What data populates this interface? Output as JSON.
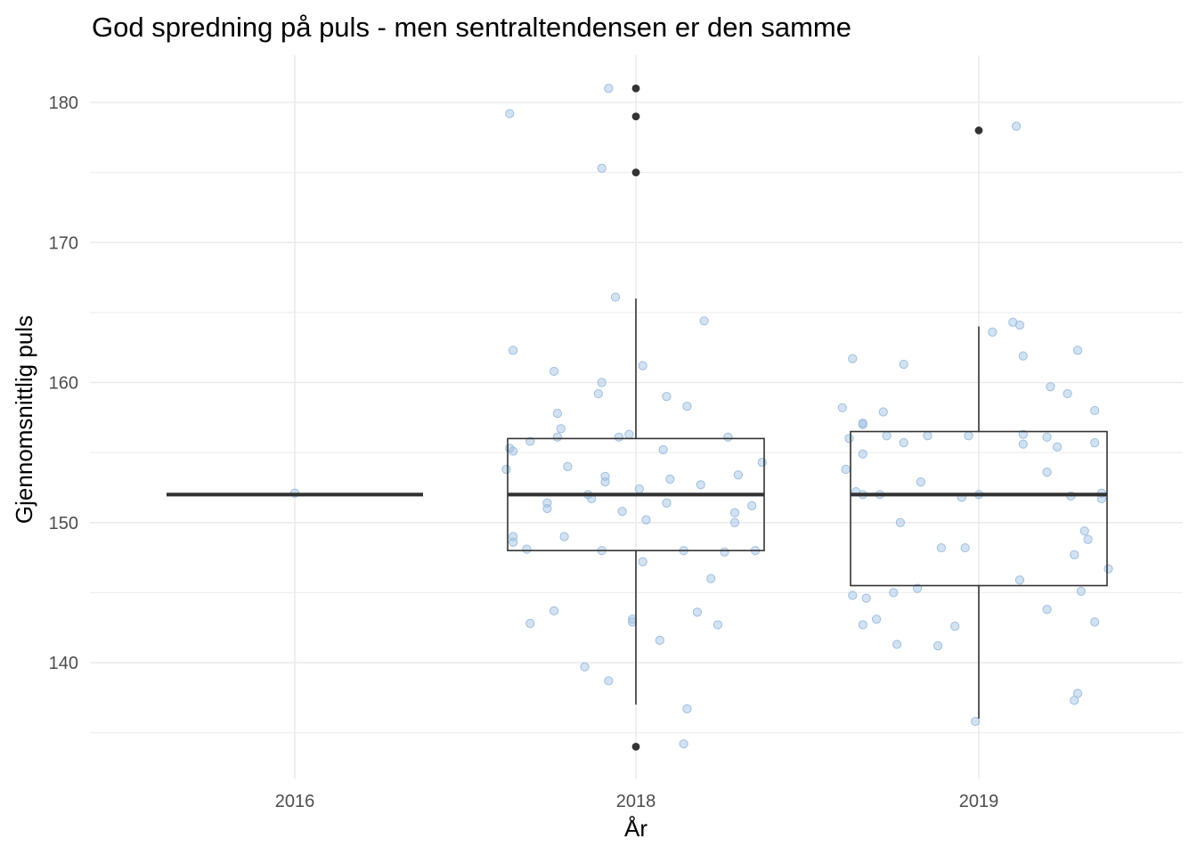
{
  "chart_data": {
    "type": "boxplot",
    "title": "God spredning på puls - men sentraltendensen er den samme",
    "xlabel": "År",
    "ylabel": "Gjennomsnittlig puls",
    "categories": [
      "2016",
      "2018",
      "2019"
    ],
    "y_ticks": [
      140,
      150,
      160,
      170,
      180
    ],
    "ylim": [
      133,
      184
    ],
    "grid": true,
    "colors": {
      "points": "#9ebfe0",
      "box": "#333333",
      "outlier": "#333333",
      "grid": "#ebebeb"
    },
    "boxes": [
      {
        "category": "2016",
        "lower_whisker": 152,
        "q1": 152,
        "median": 152,
        "q3": 152,
        "upper_whisker": 152,
        "outliers": []
      },
      {
        "category": "2018",
        "lower_whisker": 137,
        "q1": 148,
        "median": 152,
        "q3": 156,
        "upper_whisker": 166,
        "outliers": [
          134,
          175,
          179,
          181
        ]
      },
      {
        "category": "2019",
        "lower_whisker": 136,
        "q1": 145.5,
        "median": 152,
        "q3": 156.5,
        "upper_whisker": 164,
        "outliers": [
          178
        ]
      }
    ],
    "jitter_points": [
      {
        "category": "2016",
        "values": [
          [
            0.0,
            152.1
          ]
        ]
      },
      {
        "category": "2018",
        "values": [
          [
            -0.37,
            179.2
          ],
          [
            -0.1,
            175.3
          ],
          [
            -0.08,
            181.0
          ],
          [
            -0.06,
            166.1
          ],
          [
            0.2,
            164.4
          ],
          [
            -0.36,
            162.3
          ],
          [
            -0.24,
            160.8
          ],
          [
            -0.1,
            160.0
          ],
          [
            0.02,
            161.2
          ],
          [
            -0.11,
            159.2
          ],
          [
            0.09,
            159.0
          ],
          [
            0.15,
            158.3
          ],
          [
            -0.23,
            157.8
          ],
          [
            -0.22,
            156.7
          ],
          [
            -0.23,
            156.1
          ],
          [
            -0.05,
            156.1
          ],
          [
            -0.02,
            156.3
          ],
          [
            -0.31,
            155.8
          ],
          [
            -0.36,
            155.1
          ],
          [
            -0.37,
            155.3
          ],
          [
            0.08,
            155.2
          ],
          [
            0.27,
            156.1
          ],
          [
            0.37,
            154.3
          ],
          [
            -0.2,
            154.0
          ],
          [
            -0.09,
            153.3
          ],
          [
            -0.09,
            152.9
          ],
          [
            0.1,
            153.1
          ],
          [
            0.19,
            152.7
          ],
          [
            0.3,
            153.4
          ],
          [
            -0.38,
            153.8
          ],
          [
            0.01,
            152.4
          ],
          [
            -0.14,
            152.0
          ],
          [
            -0.13,
            151.7
          ],
          [
            0.09,
            151.4
          ],
          [
            -0.26,
            151.4
          ],
          [
            -0.26,
            151.0
          ],
          [
            0.34,
            151.2
          ],
          [
            -0.04,
            150.8
          ],
          [
            0.29,
            150.7
          ],
          [
            0.03,
            150.2
          ],
          [
            0.29,
            150.0
          ],
          [
            -0.36,
            149.0
          ],
          [
            -0.36,
            148.6
          ],
          [
            -0.21,
            149.0
          ],
          [
            -0.32,
            148.1
          ],
          [
            -0.1,
            148.0
          ],
          [
            0.14,
            148.0
          ],
          [
            0.26,
            147.9
          ],
          [
            0.35,
            148.0
          ],
          [
            0.02,
            147.2
          ],
          [
            0.22,
            146.0
          ],
          [
            -0.31,
            142.8
          ],
          [
            -0.24,
            143.7
          ],
          [
            -0.01,
            143.1
          ],
          [
            -0.01,
            142.9
          ],
          [
            0.18,
            143.6
          ],
          [
            0.24,
            142.7
          ],
          [
            0.07,
            141.6
          ],
          [
            -0.15,
            139.7
          ],
          [
            -0.08,
            138.7
          ],
          [
            0.15,
            136.7
          ],
          [
            0.14,
            134.2
          ]
        ]
      },
      {
        "category": "2019",
        "values": [
          [
            0.11,
            178.3
          ],
          [
            0.1,
            164.3
          ],
          [
            0.12,
            164.1
          ],
          [
            0.04,
            163.6
          ],
          [
            0.29,
            162.3
          ],
          [
            0.13,
            161.9
          ],
          [
            -0.37,
            161.7
          ],
          [
            -0.22,
            161.3
          ],
          [
            0.21,
            159.7
          ],
          [
            0.26,
            159.2
          ],
          [
            -0.4,
            158.2
          ],
          [
            0.34,
            158.0
          ],
          [
            -0.28,
            157.9
          ],
          [
            -0.34,
            157.1
          ],
          [
            -0.34,
            157.0
          ],
          [
            0.13,
            156.3
          ],
          [
            0.2,
            156.1
          ],
          [
            -0.27,
            156.2
          ],
          [
            -0.15,
            156.2
          ],
          [
            -0.03,
            156.2
          ],
          [
            -0.38,
            156.0
          ],
          [
            -0.22,
            155.7
          ],
          [
            0.13,
            155.6
          ],
          [
            0.23,
            155.4
          ],
          [
            0.34,
            155.7
          ],
          [
            -0.34,
            154.9
          ],
          [
            -0.39,
            153.8
          ],
          [
            0.2,
            153.6
          ],
          [
            -0.17,
            152.9
          ],
          [
            -0.36,
            152.2
          ],
          [
            -0.34,
            152.0
          ],
          [
            -0.29,
            152.0
          ],
          [
            -0.05,
            151.8
          ],
          [
            0.0,
            152.0
          ],
          [
            0.27,
            151.9
          ],
          [
            0.36,
            152.1
          ],
          [
            0.36,
            151.7
          ],
          [
            -0.23,
            150.0
          ],
          [
            0.31,
            149.4
          ],
          [
            0.32,
            148.8
          ],
          [
            -0.11,
            148.2
          ],
          [
            -0.04,
            148.2
          ],
          [
            0.28,
            147.7
          ],
          [
            0.12,
            145.9
          ],
          [
            0.38,
            146.7
          ],
          [
            -0.18,
            145.3
          ],
          [
            -0.25,
            145.0
          ],
          [
            -0.37,
            144.8
          ],
          [
            -0.33,
            144.6
          ],
          [
            0.3,
            145.1
          ],
          [
            -0.3,
            143.1
          ],
          [
            -0.34,
            142.7
          ],
          [
            0.2,
            143.8
          ],
          [
            0.34,
            142.9
          ],
          [
            -0.07,
            142.6
          ],
          [
            -0.24,
            141.3
          ],
          [
            -0.12,
            141.2
          ],
          [
            0.29,
            137.8
          ],
          [
            0.28,
            137.3
          ],
          [
            -0.01,
            135.8
          ]
        ]
      }
    ]
  }
}
